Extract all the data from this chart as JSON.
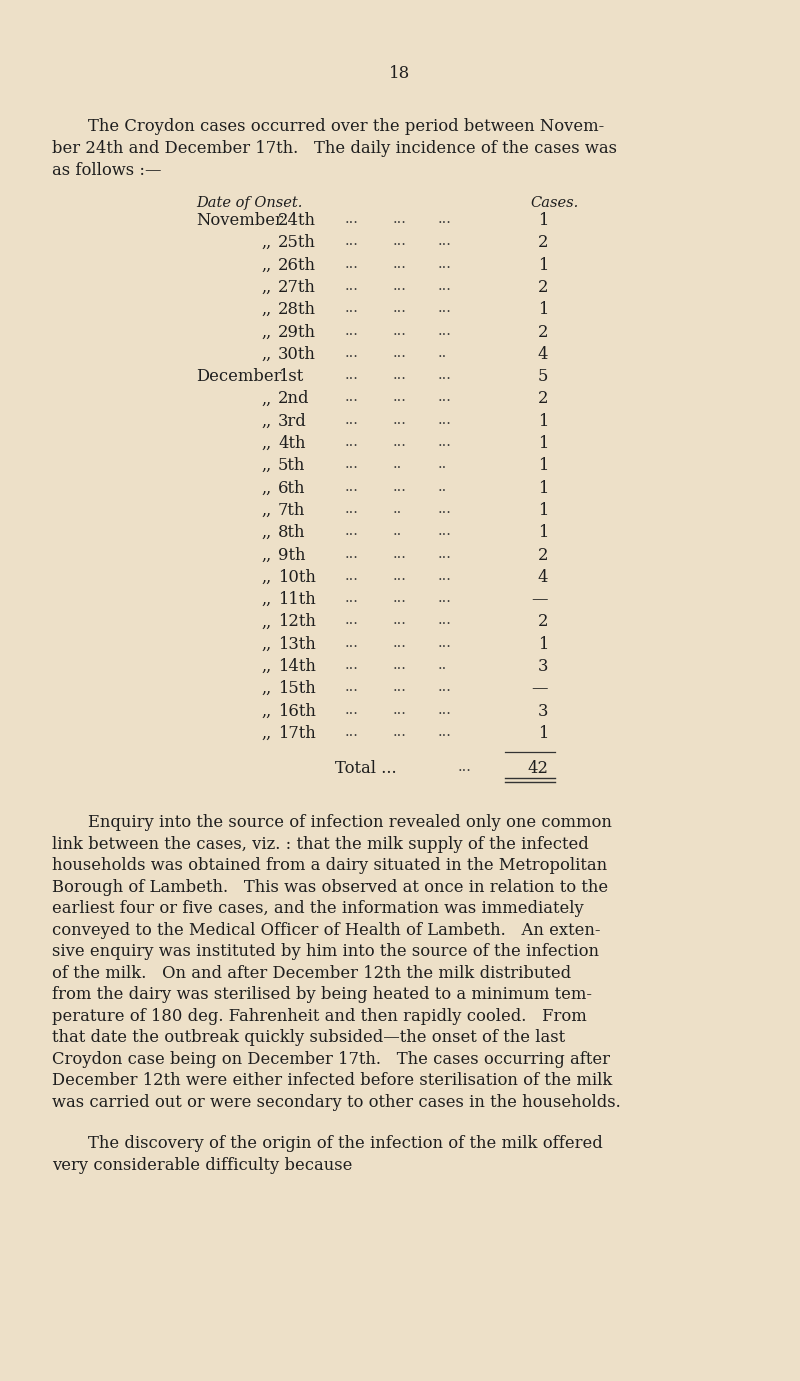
{
  "background_color": "#ede0c8",
  "page_number": "18",
  "intro_text_line1": "The Croydon cases occurred over the period between Novem-",
  "intro_text_line2": "ber 24th and December 17th.   The daily incidence of the cases was",
  "intro_text_line3": "as follows :—",
  "col_header_date": "Date of Onset.",
  "col_header_cases": "Cases.",
  "rows": [
    [
      "November",
      "24th",
      "...",
      "...",
      "...",
      "1"
    ],
    [
      ",,",
      "25th",
      "...",
      "...",
      "...",
      "2"
    ],
    [
      ",,",
      "26th",
      "...",
      "...",
      "...",
      "1"
    ],
    [
      ",,",
      "27th",
      "...",
      "...",
      "...",
      "2"
    ],
    [
      ",,",
      "28th",
      "...",
      "...",
      "...",
      "1"
    ],
    [
      ",,",
      "29th",
      "...",
      "...",
      "...",
      "2"
    ],
    [
      ",,",
      "30th",
      "...",
      "...",
      "..",
      "4"
    ],
    [
      "December",
      "1st",
      "...",
      "...",
      "...",
      "5"
    ],
    [
      ",,",
      "2nd",
      "...",
      "...",
      "...",
      "2"
    ],
    [
      ",,",
      "3rd",
      "...",
      "...",
      "...",
      "1"
    ],
    [
      ",,",
      "4th",
      "...",
      "...",
      "...",
      "1"
    ],
    [
      ",,",
      "5th",
      "...",
      "..",
      "..",
      "1"
    ],
    [
      ",,",
      "6th",
      "...",
      "...",
      "..",
      "1"
    ],
    [
      ",,",
      "7th",
      "...",
      "..",
      "...",
      "1"
    ],
    [
      ",,",
      "8th",
      "...",
      "..",
      "...",
      "1"
    ],
    [
      ",,",
      "9th",
      "...",
      "...",
      "...",
      "2"
    ],
    [
      ",,",
      "10th",
      "...",
      "...",
      "...",
      "4"
    ],
    [
      ",,",
      "11th",
      "...",
      "...",
      "...",
      "—"
    ],
    [
      ",,",
      "12th",
      "...",
      "...",
      "...",
      "2"
    ],
    [
      ",,",
      "13th",
      "...",
      "...",
      "...",
      "1"
    ],
    [
      ",,",
      "14th",
      "...",
      "...",
      "..",
      "3"
    ],
    [
      ",,",
      "15th",
      "...",
      "...",
      "...",
      "—"
    ],
    [
      ",,",
      "16th",
      "...",
      "...",
      "...",
      "3"
    ],
    [
      ",,",
      "17th",
      "...",
      "...",
      "...",
      "1"
    ]
  ],
  "total_value": "42",
  "paragraph1_indent": "        Enquiry into the source of infection revealed only one common",
  "paragraph1_lines": [
    "link between the cases, viz. : that the milk supply of the infected",
    "households was obtained from a dairy situated in the Metropolitan",
    "Borough of Lambeth.   This was observed at once in relation to the",
    "earliest four or five cases, and the information was immediately",
    "conveyed to the Medical Officer of Health of Lambeth.   An exten-",
    "sive enquiry was instituted by him into the source of the infection",
    "of the milk.   On and after December 12th the milk distributed",
    "from the dairy was sterilised by being heated to a minimum tem-",
    "perature of 180 deg. Fahrenheit and then rapidly cooled.   From",
    "that date the outbreak quickly subsided—the onset of the last",
    "Croydon case being on December 17th.   The cases occurring after",
    "December 12th were either infected before sterilisation of the milk",
    "was carried out or were secondary to other cases in the households."
  ],
  "paragraph2_indent": "        The discovery of the origin of the infection of the milk offered",
  "paragraph2_lines": [
    "very considerable difficulty because"
  ],
  "text_color": "#1e1e1e"
}
